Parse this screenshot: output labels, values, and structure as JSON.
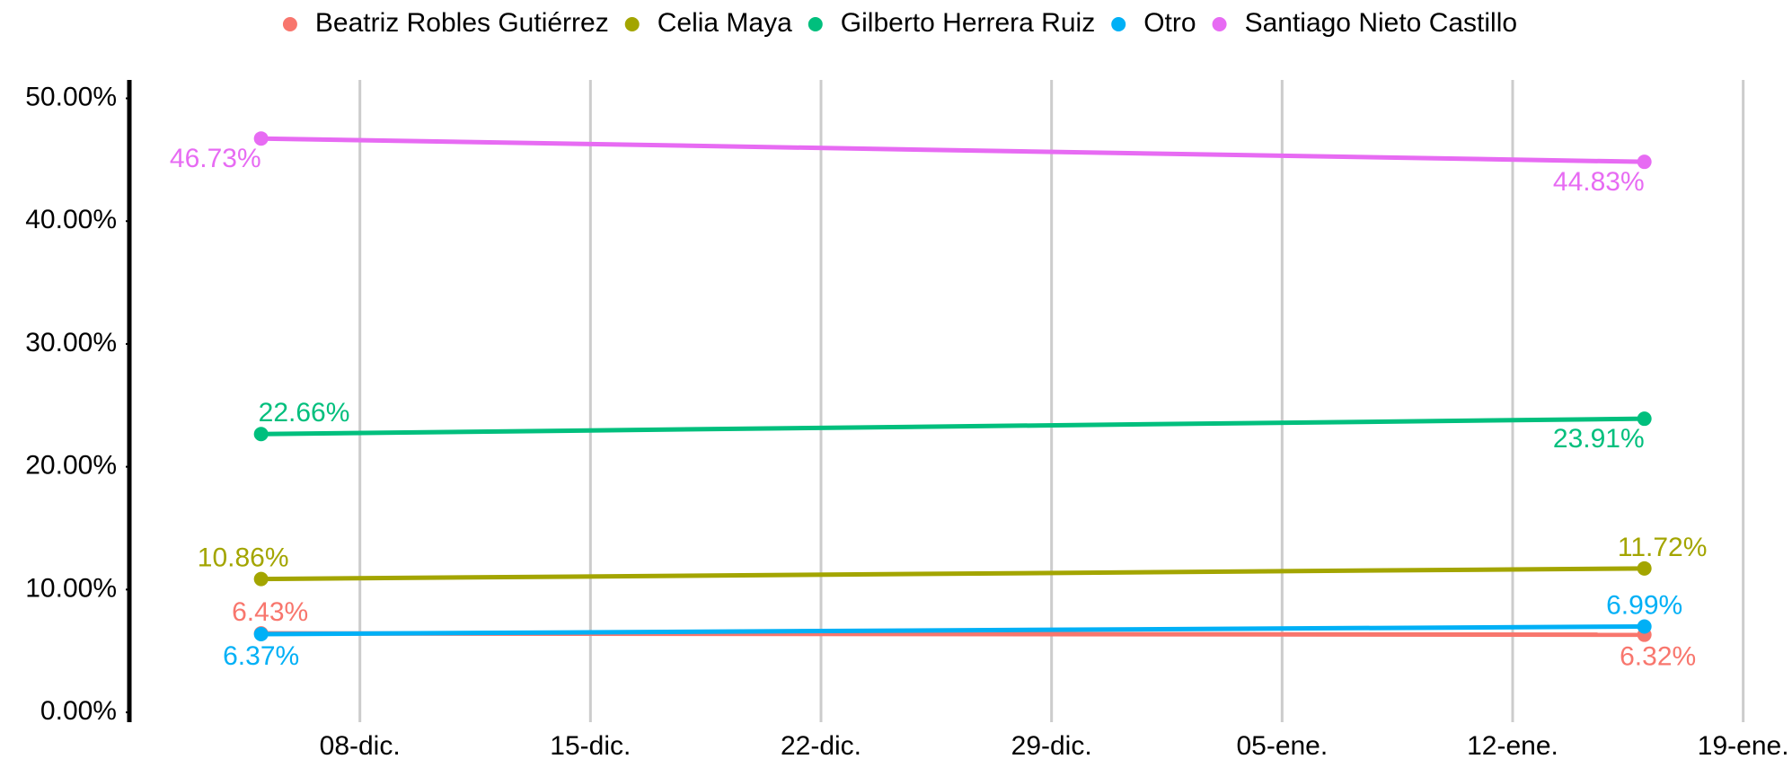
{
  "chart_data": {
    "type": "line",
    "x": [
      0,
      42
    ],
    "xlim": [
      -4,
      45.5
    ],
    "xticks": [
      {
        "value": 3,
        "label": "08-dic."
      },
      {
        "value": 10,
        "label": "15-dic."
      },
      {
        "value": 17,
        "label": "22-dic."
      },
      {
        "value": 24,
        "label": "29-dic."
      },
      {
        "value": 31,
        "label": "05-ene."
      },
      {
        "value": 38,
        "label": "12-ene."
      },
      {
        "value": 45,
        "label": "19-ene."
      }
    ],
    "ylim": [
      -0.8,
      51.5
    ],
    "yticks": [
      {
        "value": 0,
        "label": "0.00%"
      },
      {
        "value": 10,
        "label": "10.00%"
      },
      {
        "value": 20,
        "label": "20.00%"
      },
      {
        "value": 30,
        "label": "30.00%"
      },
      {
        "value": 40,
        "label": "40.00%"
      },
      {
        "value": 50,
        "label": "50.00%"
      }
    ],
    "grid": "x",
    "legend": "top",
    "series": [
      {
        "name": "Beatriz Robles Gutiérrez",
        "color": "#F8766D",
        "values": [
          6.43,
          6.32
        ],
        "value_labels": [
          "6.43%",
          "6.32%"
        ]
      },
      {
        "name": "Celia Maya",
        "color": "#A3A500",
        "values": [
          10.86,
          11.72
        ],
        "value_labels": [
          "10.86%",
          "11.72%"
        ]
      },
      {
        "name": "Gilberto Herrera Ruiz",
        "color": "#00BF7D",
        "values": [
          22.66,
          23.91
        ],
        "value_labels": [
          "22.66%",
          "23.91%"
        ]
      },
      {
        "name": "Otro",
        "color": "#00B0F6",
        "values": [
          6.37,
          6.99
        ],
        "value_labels": [
          "6.37%",
          "6.99%"
        ]
      },
      {
        "name": "Santiago Nieto Castillo",
        "color": "#E76BF3",
        "values": [
          46.73,
          44.83
        ],
        "value_labels": [
          "46.73%",
          "44.83%"
        ]
      }
    ]
  }
}
